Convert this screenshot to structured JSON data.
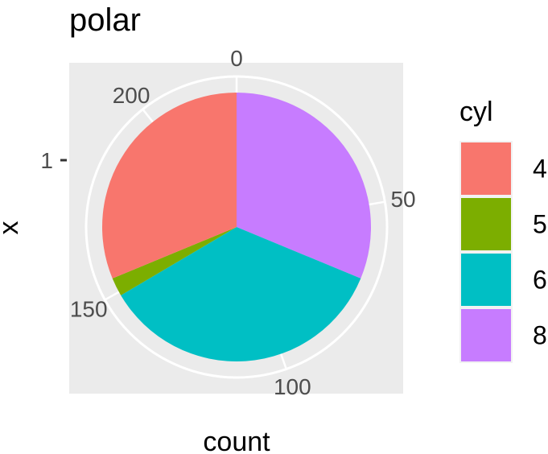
{
  "chart_data": {
    "type": "pie",
    "coord": "polar",
    "title": "polar",
    "xlabel": "count",
    "ylabel": "x",
    "x_tick_labels": [
      "1"
    ],
    "angular_axis": {
      "ticks": [
        0,
        50,
        100,
        150,
        200
      ],
      "total": 224
    },
    "legend": {
      "title": "cyl",
      "position": "right",
      "items": [
        {
          "label": "4",
          "color": "#F8766D"
        },
        {
          "label": "5",
          "color": "#7CAE00"
        },
        {
          "label": "6",
          "color": "#00BFC4"
        },
        {
          "label": "8",
          "color": "#C77CFF"
        }
      ]
    },
    "series": [
      {
        "category": "8",
        "value": 70,
        "color": "#C77CFF"
      },
      {
        "category": "6",
        "value": 79,
        "color": "#00BFC4"
      },
      {
        "category": "5",
        "value": 5,
        "color": "#7CAE00"
      },
      {
        "category": "4",
        "value": 70,
        "color": "#F8766D"
      }
    ],
    "panel_background": "#EBEBEB",
    "grid": true
  }
}
